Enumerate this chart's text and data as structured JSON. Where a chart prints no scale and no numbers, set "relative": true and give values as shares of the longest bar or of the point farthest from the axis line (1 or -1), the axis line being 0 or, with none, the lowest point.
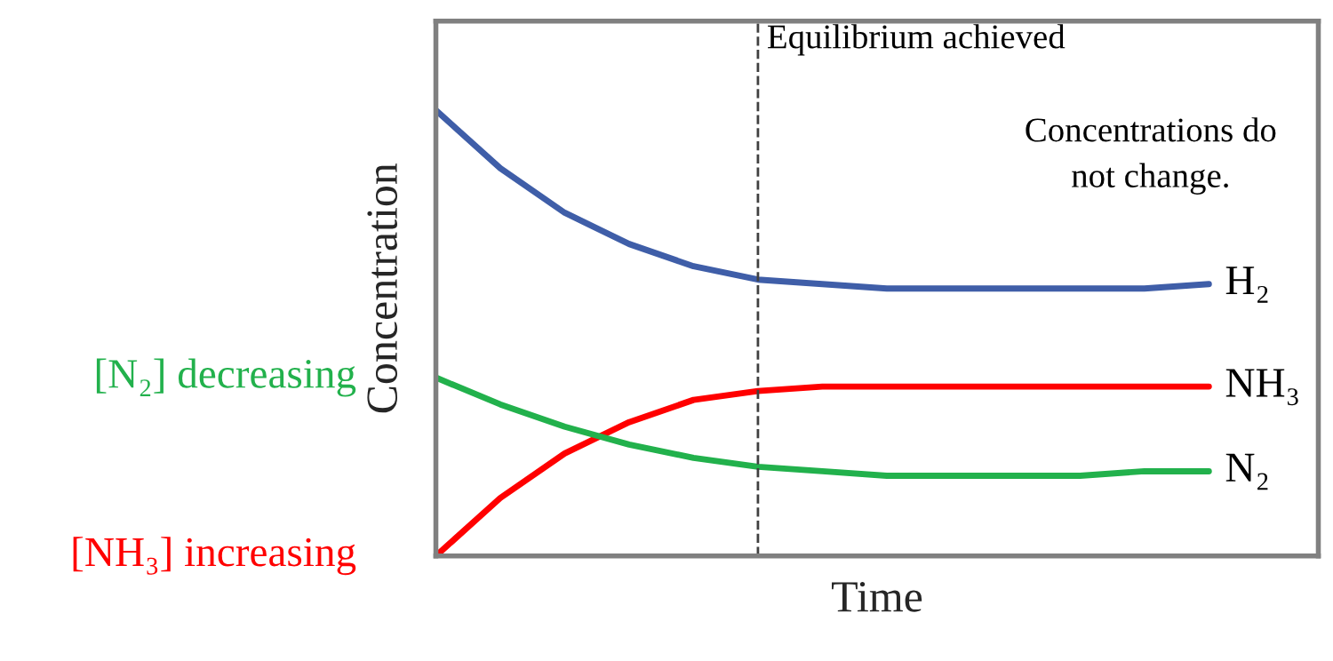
{
  "chart_data": {
    "type": "line",
    "relative": true,
    "xlabel": "Time",
    "ylabel": "Concentration",
    "legend": false,
    "marker": "none",
    "line_style": "solid",
    "categories": [
      null,
      null,
      null,
      null,
      null,
      null,
      null,
      null,
      null,
      null,
      null,
      null,
      null
    ],
    "series": [
      {
        "name": "H₂",
        "color": "#3f5ea8",
        "values": [
          1.0,
          0.87,
          0.77,
          0.7,
          0.65,
          0.62,
          0.61,
          0.6,
          0.6,
          0.6,
          0.6,
          0.6,
          0.61
        ]
      },
      {
        "name": "NH₃",
        "color": "#ff0000",
        "values": [
          0.0,
          0.13,
          0.23,
          0.3,
          0.35,
          0.37,
          0.38,
          0.38,
          0.38,
          0.38,
          0.38,
          0.38,
          0.38
        ]
      },
      {
        "name": "N₂",
        "color": "#22b14c",
        "values": [
          0.4,
          0.34,
          0.29,
          0.25,
          0.22,
          0.2,
          0.19,
          0.18,
          0.18,
          0.18,
          0.18,
          0.19,
          0.19
        ]
      }
    ],
    "annotations": [
      "Equilibrium achieved",
      "Concentrations do\nnot change.",
      "[N₂] decreasing",
      "[NH₃] increasing"
    ]
  }
}
